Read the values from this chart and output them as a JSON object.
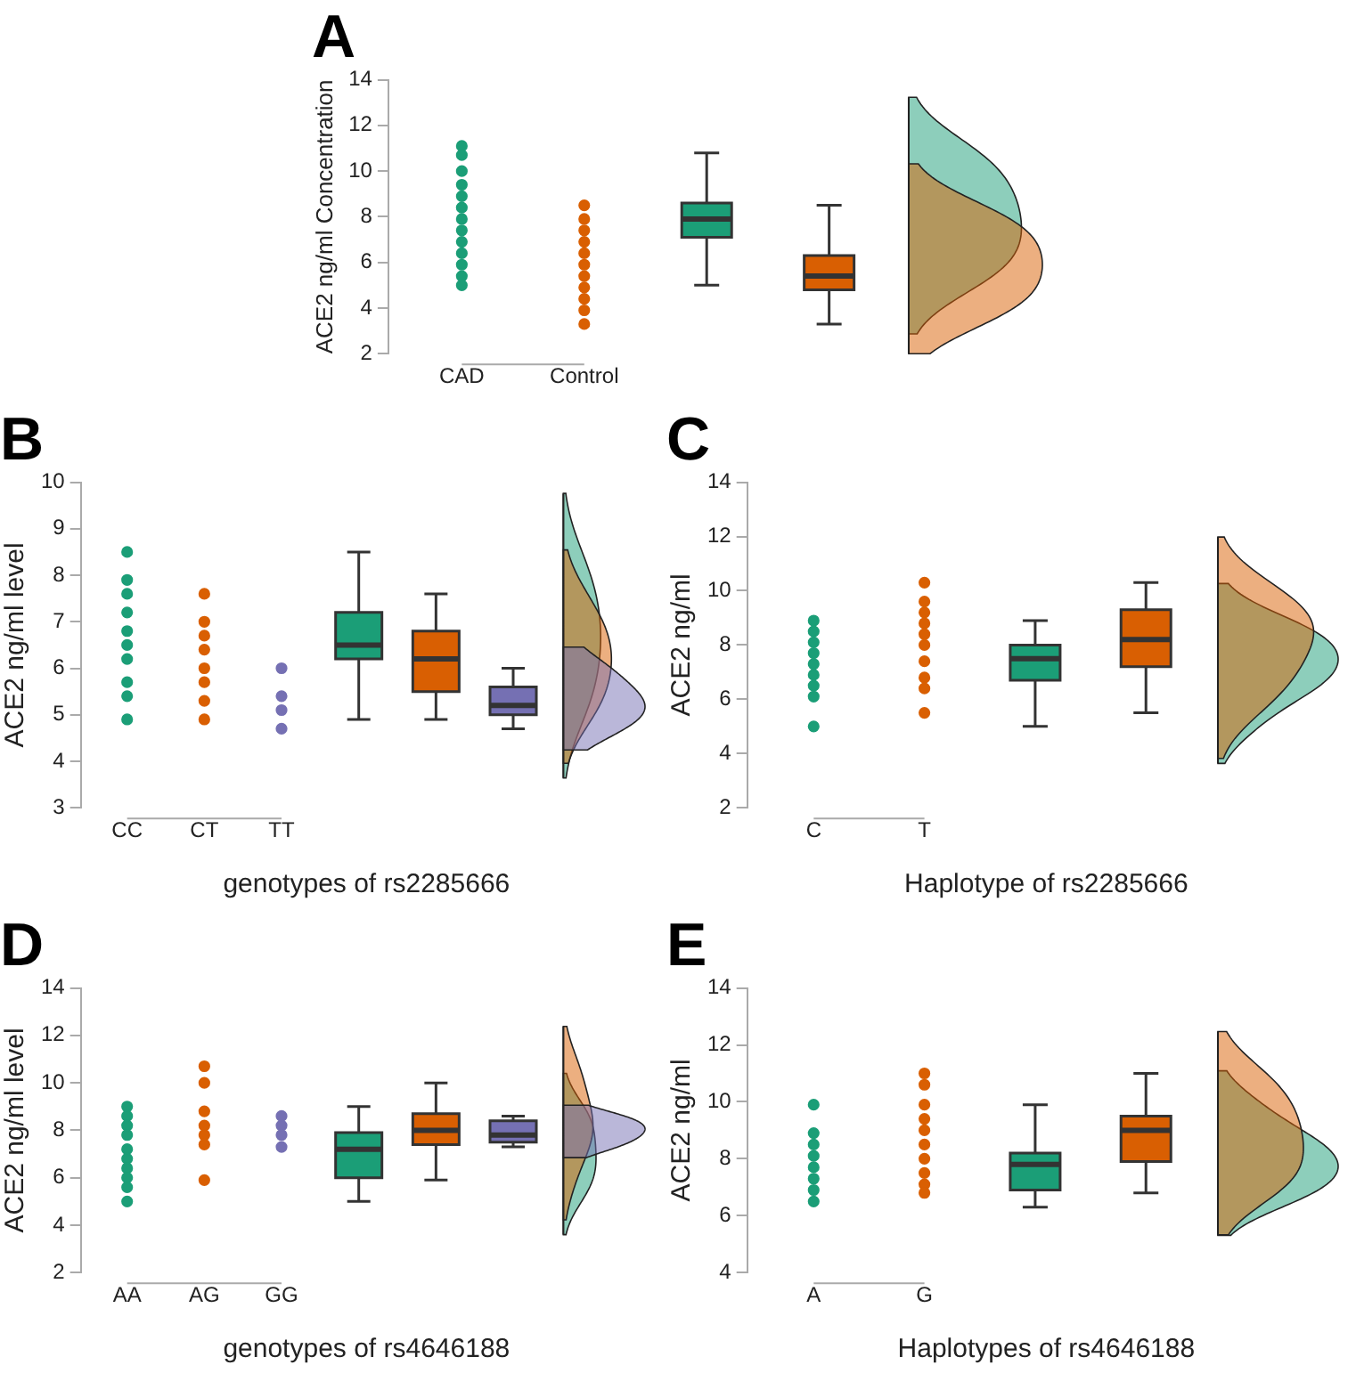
{
  "chart_data": [
    {
      "type": "scatter",
      "title": "A",
      "ylabel": "ACE2 ng/ml Concentration",
      "categories": [
        "CAD",
        "Control",
        null,
        null
      ],
      "ylim": [
        2,
        14
      ],
      "yticks": [
        2,
        4,
        6,
        8,
        10,
        12,
        14
      ],
      "marker": "circle",
      "series": [
        {
          "color": "#1b9e77",
          "x": [
            "CAD",
            "CAD",
            "CAD",
            "CAD",
            "CAD",
            "CAD",
            "CAD",
            "CAD",
            "CAD",
            "CAD",
            "CAD",
            "CAD",
            "CAD"
          ],
          "values": [
            11.1,
            10.7,
            10.0,
            9.4,
            8.9,
            8.4,
            7.9,
            7.4,
            6.9,
            6.4,
            5.9,
            5.4,
            5.0
          ]
        },
        {
          "color": "#d95f02",
          "x": [
            "Control",
            "Control",
            "Control",
            "Control",
            "Control",
            "Control",
            "Control",
            "Control",
            "Control",
            "Control",
            "Control"
          ],
          "values": [
            8.5,
            7.9,
            7.4,
            6.9,
            6.4,
            5.9,
            5.4,
            4.9,
            4.4,
            3.9,
            3.3
          ]
        },
        {
          "type": "box",
          "color": "#1b9e77",
          "boxes": [
            null,
            null,
            {
              "low": 5.0,
              "q1": 7.1,
              "median": 7.9,
              "q3": 8.6,
              "high": 10.8
            },
            null
          ]
        },
        {
          "type": "box",
          "color": "#d95f02",
          "boxes": [
            null,
            null,
            null,
            {
              "low": 3.3,
              "q1": 4.8,
              "median": 5.4,
              "q3": 6.3,
              "high": 8.5
            }
          ]
        }
      ]
    },
    {
      "type": "scatter",
      "title": "B",
      "ylabel": "ACE2 ng/ml level",
      "xlabel": "genotypes of rs2285666",
      "categories": [
        "CC",
        "CT",
        "TT",
        null,
        null,
        null
      ],
      "ylim": [
        3,
        10
      ],
      "yticks": [
        3,
        4,
        5,
        6,
        7,
        8,
        9,
        10
      ],
      "marker": "circle",
      "series": [
        {
          "color": "#1b9e77",
          "x": [
            "CC",
            "CC",
            "CC",
            "CC",
            "CC",
            "CC",
            "CC",
            "CC",
            "CC",
            "CC"
          ],
          "values": [
            8.5,
            7.9,
            7.6,
            7.2,
            6.8,
            6.5,
            6.2,
            5.7,
            5.4,
            4.9
          ]
        },
        {
          "color": "#d95f02",
          "x": [
            "CT",
            "CT",
            "CT",
            "CT",
            "CT",
            "CT",
            "CT",
            "CT"
          ],
          "values": [
            7.6,
            7.0,
            6.7,
            6.4,
            6.0,
            5.7,
            5.3,
            4.9
          ]
        },
        {
          "color": "#7570b3",
          "x": [
            "TT",
            "TT",
            "TT",
            "TT"
          ],
          "values": [
            6.0,
            5.4,
            5.1,
            4.7
          ]
        },
        {
          "type": "box",
          "color": "#1b9e77",
          "boxes": [
            null,
            null,
            null,
            {
              "low": 4.9,
              "q1": 6.2,
              "median": 6.5,
              "q3": 7.2,
              "high": 8.5
            },
            null,
            null
          ]
        },
        {
          "type": "box",
          "color": "#d95f02",
          "boxes": [
            null,
            null,
            null,
            null,
            {
              "low": 4.9,
              "q1": 5.5,
              "median": 6.2,
              "q3": 6.8,
              "high": 7.6
            },
            null
          ]
        },
        {
          "type": "box",
          "color": "#7570b3",
          "boxes": [
            null,
            null,
            null,
            null,
            null,
            {
              "low": 4.7,
              "q1": 5.0,
              "median": 5.2,
              "q3": 5.6,
              "high": 6.0
            }
          ]
        }
      ]
    },
    {
      "type": "scatter",
      "title": "C",
      "ylabel": "ACE2 ng/ml",
      "xlabel": "Haplotype of rs2285666",
      "categories": [
        "C",
        "T",
        null,
        null
      ],
      "ylim": [
        2,
        14
      ],
      "yticks": [
        2,
        4,
        6,
        8,
        10,
        12,
        14
      ],
      "marker": "circle",
      "series": [
        {
          "color": "#1b9e77",
          "x": [
            "C",
            "C",
            "C",
            "C",
            "C",
            "C",
            "C",
            "C",
            "C"
          ],
          "values": [
            8.9,
            8.5,
            8.1,
            7.7,
            7.3,
            6.9,
            6.5,
            6.1,
            5.0
          ]
        },
        {
          "color": "#d95f02",
          "x": [
            "T",
            "T",
            "T",
            "T",
            "T",
            "T",
            "T",
            "T",
            "T",
            "T"
          ],
          "values": [
            10.3,
            9.6,
            9.2,
            8.8,
            8.4,
            8.0,
            7.4,
            6.8,
            6.4,
            5.5
          ]
        },
        {
          "type": "box",
          "color": "#1b9e77",
          "boxes": [
            null,
            null,
            {
              "low": 5.0,
              "q1": 6.7,
              "median": 7.5,
              "q3": 8.0,
              "high": 8.9
            },
            null
          ]
        },
        {
          "type": "box",
          "color": "#d95f02",
          "boxes": [
            null,
            null,
            null,
            {
              "low": 5.5,
              "q1": 7.2,
              "median": 8.2,
              "q3": 9.3,
              "high": 10.3
            }
          ]
        }
      ]
    },
    {
      "type": "scatter",
      "title": "D",
      "ylabel": "ACE2 ng/ml level",
      "xlabel": "genotypes of rs4646188",
      "categories": [
        "AA",
        "AG",
        "GG",
        null,
        null,
        null
      ],
      "ylim": [
        2,
        14
      ],
      "yticks": [
        2,
        4,
        6,
        8,
        10,
        12,
        14
      ],
      "marker": "circle",
      "series": [
        {
          "color": "#1b9e77",
          "x": [
            "AA",
            "AA",
            "AA",
            "AA",
            "AA",
            "AA",
            "AA",
            "AA",
            "AA",
            "AA"
          ],
          "values": [
            9.0,
            8.6,
            8.2,
            7.8,
            7.2,
            6.8,
            6.4,
            6.0,
            5.6,
            5.0
          ]
        },
        {
          "color": "#d95f02",
          "x": [
            "AG",
            "AG",
            "AG",
            "AG",
            "AG",
            "AG",
            "AG"
          ],
          "values": [
            10.7,
            10.0,
            8.8,
            8.2,
            7.8,
            7.4,
            5.9
          ]
        },
        {
          "color": "#7570b3",
          "x": [
            "GG",
            "GG",
            "GG",
            "GG"
          ],
          "values": [
            8.6,
            8.2,
            7.8,
            7.3
          ]
        },
        {
          "type": "box",
          "color": "#1b9e77",
          "boxes": [
            null,
            null,
            null,
            {
              "low": 5.0,
              "q1": 6.0,
              "median": 7.2,
              "q3": 7.9,
              "high": 9.0
            },
            null,
            null
          ]
        },
        {
          "type": "box",
          "color": "#d95f02",
          "boxes": [
            null,
            null,
            null,
            null,
            {
              "low": 5.9,
              "q1": 7.4,
              "median": 8.0,
              "q3": 8.7,
              "high": 10.0
            },
            null
          ]
        },
        {
          "type": "box",
          "color": "#7570b3",
          "boxes": [
            null,
            null,
            null,
            null,
            null,
            {
              "low": 7.3,
              "q1": 7.5,
              "median": 7.8,
              "q3": 8.4,
              "high": 8.6
            }
          ]
        }
      ]
    },
    {
      "type": "scatter",
      "title": "E",
      "ylabel": "ACE2 ng/ml",
      "xlabel": "Haplotypes of rs4646188",
      "categories": [
        "A",
        "G",
        null,
        null
      ],
      "ylim": [
        4,
        14
      ],
      "yticks": [
        4,
        6,
        8,
        10,
        12,
        14
      ],
      "marker": "circle",
      "series": [
        {
          "color": "#1b9e77",
          "x": [
            "A",
            "A",
            "A",
            "A",
            "A",
            "A",
            "A",
            "A"
          ],
          "values": [
            9.9,
            8.9,
            8.5,
            8.1,
            7.7,
            7.3,
            6.9,
            6.5
          ]
        },
        {
          "color": "#d95f02",
          "x": [
            "G",
            "G",
            "G",
            "G",
            "G",
            "G",
            "G",
            "G",
            "G",
            "G"
          ],
          "values": [
            11.0,
            10.6,
            9.9,
            9.4,
            9.0,
            8.5,
            8.0,
            7.5,
            7.1,
            6.8
          ]
        },
        {
          "type": "box",
          "color": "#1b9e77",
          "boxes": [
            null,
            null,
            {
              "low": 6.3,
              "q1": 6.9,
              "median": 7.8,
              "q3": 8.2,
              "high": 9.9
            },
            null
          ]
        },
        {
          "type": "box",
          "color": "#d95f02",
          "boxes": [
            null,
            null,
            null,
            {
              "low": 6.8,
              "q1": 7.9,
              "median": 9.0,
              "q3": 9.5,
              "high": 11.0
            }
          ]
        }
      ]
    }
  ]
}
